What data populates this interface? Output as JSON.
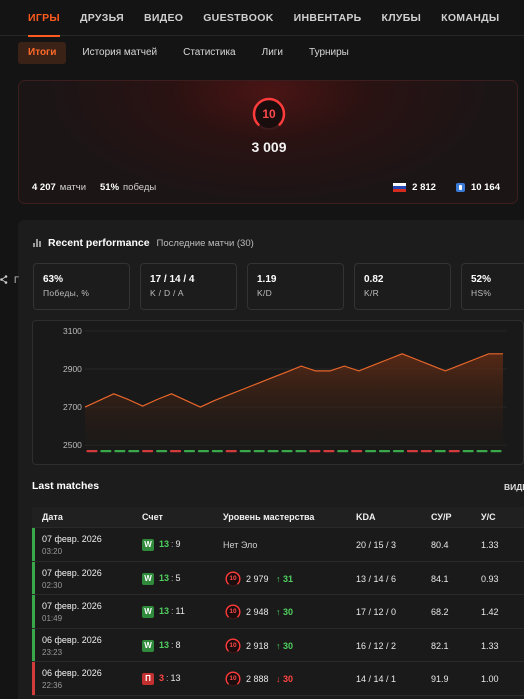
{
  "nav": {
    "items": [
      "ИГРЫ",
      "ДРУЗЬЯ",
      "ВИДЕО",
      "GUESTBOOK",
      "ИНВЕНТАРЬ",
      "КЛУБЫ",
      "КОМАНДЫ"
    ]
  },
  "subtabs": [
    "Итоги",
    "История матчей",
    "Статистика",
    "Лиги",
    "Турниры"
  ],
  "level": {
    "badge": "10",
    "elo": "3 009",
    "matches_value": "4 207",
    "matches_label": "матчи",
    "winrate_value": "51%",
    "winrate_label": "победы",
    "ru_rank": "2 812",
    "region_rank": "10 164"
  },
  "performance": {
    "title": "Recent performance",
    "subtitle": "Последние матчи (30)",
    "share_label": "Г",
    "stats": [
      {
        "value": "63%",
        "label": "Победы, %"
      },
      {
        "value": "17 / 14 / 4",
        "label": "K / D / A"
      },
      {
        "value": "1.19",
        "label": "K/D"
      },
      {
        "value": "0.82",
        "label": "K/R"
      },
      {
        "value": "52%",
        "label": "HS%"
      }
    ]
  },
  "chart_data": {
    "type": "area",
    "title": "",
    "xlabel": "",
    "ylabel": "",
    "yticks": [
      2500,
      2700,
      2900,
      3100
    ],
    "ylim": [
      2480,
      3110
    ],
    "x": [
      1,
      2,
      3,
      4,
      5,
      6,
      7,
      8,
      9,
      10,
      11,
      12,
      13,
      14,
      15,
      16,
      17,
      18,
      19,
      20,
      21,
      22,
      23,
      24,
      25,
      26,
      27,
      28,
      29,
      30
    ],
    "values": [
      2700,
      2735,
      2770,
      2740,
      2705,
      2740,
      2770,
      2735,
      2700,
      2735,
      2765,
      2795,
      2825,
      2855,
      2885,
      2915,
      2890,
      2890,
      2915,
      2890,
      2920,
      2950,
      2980,
      2950,
      2920,
      2890,
      2920,
      2950,
      2980,
      2980
    ],
    "results": [
      "L",
      "W",
      "W",
      "W",
      "L",
      "W",
      "L",
      "W",
      "W",
      "W",
      "L",
      "W",
      "W",
      "W",
      "W",
      "W",
      "L",
      "L",
      "W",
      "L",
      "W",
      "W",
      "W",
      "L",
      "L",
      "W",
      "L",
      "W",
      "W",
      "W"
    ],
    "colors": {
      "line": "#e8662a",
      "win": "#3aa84a",
      "loss": "#d23b3b"
    }
  },
  "last_matches": {
    "title": "Last matches",
    "view_label": "ВИДЕ",
    "headers": {
      "date": "Дата",
      "score": "Счет",
      "level": "Уровень мастерства",
      "kda": "KDA",
      "kr": "СУ/Р",
      "hs": "У/С"
    },
    "rows": [
      {
        "date": "07 февр. 2026",
        "time": "03:20",
        "result": "W",
        "score_a": "13",
        "score_b": "9",
        "elo": "Нет Эло",
        "delta": "",
        "kda": "20 / 15 / 3",
        "kr": "80.4",
        "hs": "1.33",
        "win": true,
        "has_icon": false
      },
      {
        "date": "07 февр. 2026",
        "time": "02:30",
        "result": "W",
        "score_a": "13",
        "score_b": "5",
        "elo": "2 979",
        "delta": "↑ 31",
        "kda": "13 / 14 / 6",
        "kr": "84.1",
        "hs": "0.93",
        "win": true,
        "has_icon": true
      },
      {
        "date": "07 февр. 2026",
        "time": "01:49",
        "result": "W",
        "score_a": "13",
        "score_b": "11",
        "elo": "2 948",
        "delta": "↑ 30",
        "kda": "17 / 12 / 0",
        "kr": "68.2",
        "hs": "1.42",
        "win": true,
        "has_icon": true
      },
      {
        "date": "06 февр. 2026",
        "time": "23:23",
        "result": "W",
        "score_a": "13",
        "score_b": "8",
        "elo": "2 918",
        "delta": "↑ 30",
        "kda": "16 / 12 / 2",
        "kr": "82.1",
        "hs": "1.33",
        "win": true,
        "has_icon": true
      },
      {
        "date": "06 февр. 2026",
        "time": "22:36",
        "result": "П",
        "score_a": "3",
        "score_b": "13",
        "elo": "2 888",
        "delta": "↓ 30",
        "kda": "14 / 14 / 1",
        "kr": "91.9",
        "hs": "1.00",
        "win": false,
        "has_icon": true
      }
    ]
  }
}
